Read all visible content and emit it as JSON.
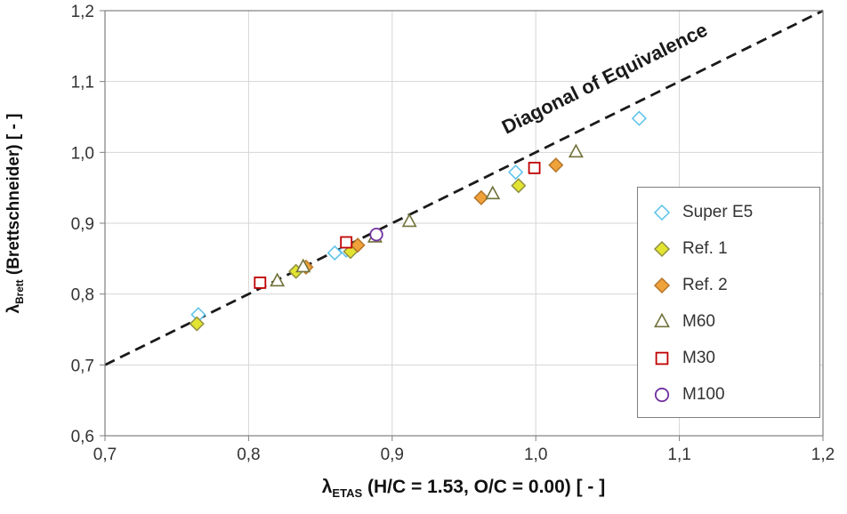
{
  "figure": {
    "background": "#ffffff"
  },
  "chart_data": {
    "type": "scatter",
    "title": "",
    "x_axis": {
      "label_prefix": "λ",
      "label_sub": "ETAS",
      "label_rest": " (H/C = 1.53, O/C = 0.00) [ - ]",
      "range": [
        0.7,
        1.2
      ],
      "ticks": [
        0.7,
        0.8,
        0.9,
        1.0,
        1.1,
        1.2
      ],
      "tick_labels": [
        "0,7",
        "0,8",
        "0,9",
        "1,0",
        "1,1",
        "1,2"
      ]
    },
    "y_axis": {
      "label_prefix": "λ",
      "label_sub": "Brett",
      "label_rest": " (Brettschneider) [ - ]",
      "range": [
        0.6,
        1.2
      ],
      "ticks": [
        0.6,
        0.7,
        0.8,
        0.9,
        1.0,
        1.1,
        1.2
      ],
      "tick_labels": [
        "0,6",
        "0,7",
        "0,8",
        "0,9",
        "1,0",
        "1,1",
        "1,2"
      ]
    },
    "grid": true,
    "grid_color": "#d6d6d6",
    "border_color": "#7f7f7f",
    "diagonal": {
      "from": [
        0.7,
        0.7
      ],
      "to": [
        1.2,
        1.2
      ],
      "color": "#1a1a1a",
      "label": "Diagonal of Equivalence",
      "label_anchor": [
        1.05,
        1.096
      ]
    },
    "legend_position": "middle-right",
    "series": [
      {
        "name": "Super E5",
        "marker": {
          "shape": "diamond",
          "fill": "#ffffff",
          "stroke": "#58c1ea"
        },
        "points": [
          [
            0.765,
            0.771
          ],
          [
            0.86,
            0.858
          ],
          [
            0.868,
            0.862
          ],
          [
            0.986,
            0.972
          ],
          [
            1.072,
            1.048
          ]
        ]
      },
      {
        "name": "Ref. 1",
        "marker": {
          "shape": "diamond",
          "fill": "#e2e431",
          "stroke": "#8f8f42"
        },
        "points": [
          [
            0.764,
            0.758
          ],
          [
            0.833,
            0.832
          ],
          [
            0.871,
            0.86
          ],
          [
            0.988,
            0.953
          ]
        ]
      },
      {
        "name": "Ref. 2",
        "marker": {
          "shape": "diamond",
          "fill": "#f0a23a",
          "stroke": "#b5762a"
        },
        "points": [
          [
            0.84,
            0.838
          ],
          [
            0.876,
            0.869
          ],
          [
            0.962,
            0.936
          ],
          [
            1.014,
            0.982
          ]
        ]
      },
      {
        "name": "M60",
        "marker": {
          "shape": "triangle",
          "fill": "#ffffff",
          "stroke": "#71713a"
        },
        "points": [
          [
            0.82,
            0.818
          ],
          [
            0.838,
            0.838
          ],
          [
            0.888,
            0.88
          ],
          [
            0.912,
            0.902
          ],
          [
            0.97,
            0.941
          ],
          [
            1.028,
            1.0
          ]
        ]
      },
      {
        "name": "M30",
        "marker": {
          "shape": "square",
          "fill": "#ffffff",
          "stroke": "#c00000"
        },
        "points": [
          [
            0.808,
            0.816
          ],
          [
            0.868,
            0.873
          ],
          [
            0.999,
            0.978
          ]
        ]
      },
      {
        "name": "M100",
        "marker": {
          "shape": "circle",
          "fill": "#ffffff",
          "stroke": "#7030a0"
        },
        "points": [
          [
            0.889,
            0.884
          ]
        ]
      }
    ]
  }
}
